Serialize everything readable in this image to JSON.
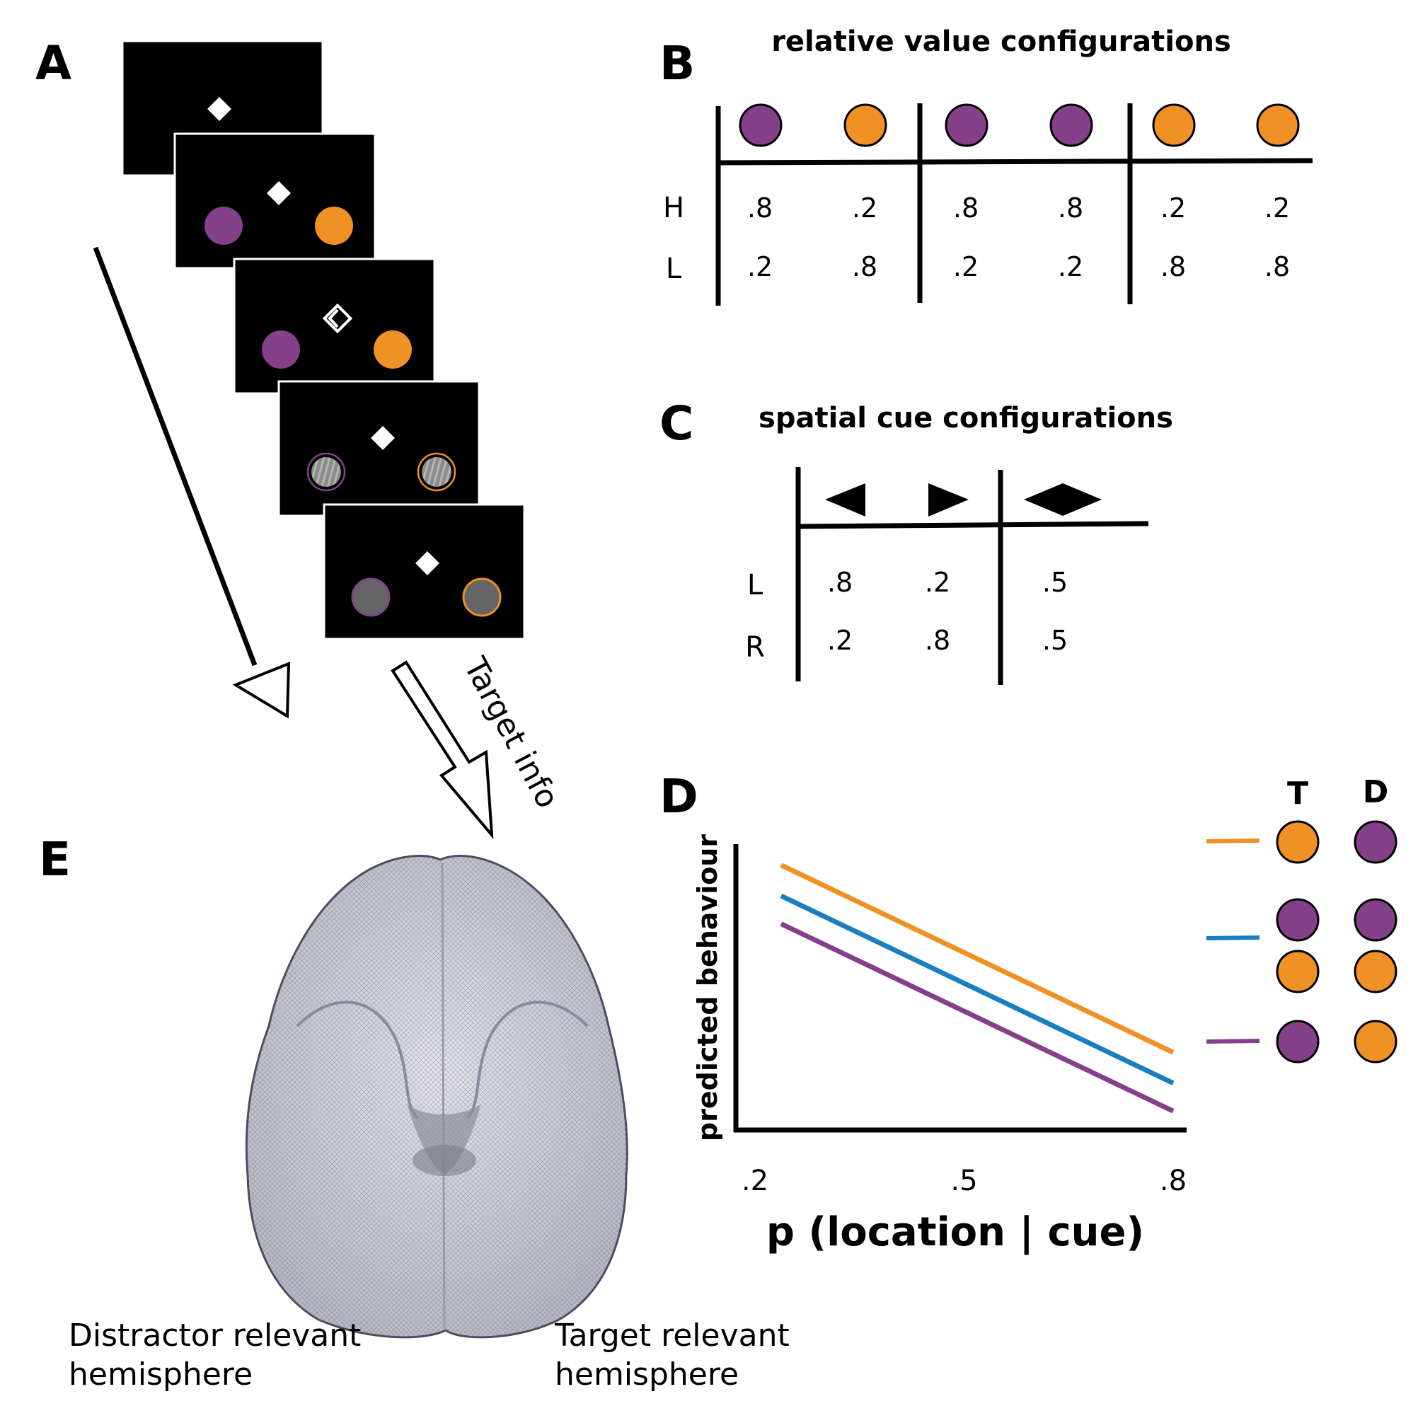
{
  "panel_a": {
    "letter": "A",
    "target_arrow_label": "Target info",
    "colors": {
      "purple": "#844089",
      "orange": "#ef9125",
      "screen": "#000000",
      "grating_gray": "#8c8c8c"
    }
  },
  "panel_b": {
    "letter": "B",
    "title": "relative value configurations",
    "row_labels": [
      "H",
      "L"
    ],
    "columns": [
      {
        "color": "purple",
        "H": ".8",
        "L": ".2"
      },
      {
        "color": "orange",
        "H": ".2",
        "L": ".8"
      },
      {
        "color": "purple",
        "H": ".8",
        "L": ".2"
      },
      {
        "color": "purple",
        "H": ".8",
        "L": ".2"
      },
      {
        "color": "orange",
        "H": ".2",
        "L": ".8"
      },
      {
        "color": "orange",
        "H": ".2",
        "L": ".8"
      }
    ]
  },
  "panel_c": {
    "letter": "C",
    "title": "spatial cue configurations",
    "row_labels": [
      "L",
      "R"
    ],
    "columns": [
      {
        "cue": "left-arrow",
        "L": ".8",
        "R": ".2"
      },
      {
        "cue": "right-arrow",
        "L": ".2",
        "R": ".8"
      },
      {
        "cue": "double-arrow",
        "L": ".5",
        "R": ".5"
      }
    ]
  },
  "panel_d": {
    "letter": "D",
    "legend_headers": [
      "T",
      "D"
    ],
    "legend_rows": [
      {
        "line_color": "#ef9125",
        "pairs": [
          [
            "orange",
            "purple"
          ]
        ]
      },
      {
        "line_color": "#1a7fbf",
        "pairs": [
          [
            "purple",
            "purple"
          ],
          [
            "orange",
            "orange"
          ]
        ]
      },
      {
        "line_color": "#844089",
        "pairs": [
          [
            "purple",
            "orange"
          ]
        ]
      }
    ]
  },
  "chart_data": {
    "type": "line",
    "xlabel": "p (location | cue)",
    "ylabel": "predicted behaviour",
    "x_ticks": [
      ".2",
      ".5",
      ".8"
    ],
    "xlim": [
      0.2,
      0.8
    ],
    "ylim": [
      0,
      1
    ],
    "grid": false,
    "series": [
      {
        "color": "#ef9125",
        "x": [
          0.2,
          0.8
        ],
        "y": [
          0.93,
          0.26
        ]
      },
      {
        "color": "#1a7fbf",
        "x": [
          0.2,
          0.8
        ],
        "y": [
          0.82,
          0.15
        ]
      },
      {
        "color": "#844089",
        "x": [
          0.2,
          0.8
        ],
        "y": [
          0.72,
          0.05
        ]
      }
    ]
  },
  "panel_e": {
    "letter": "E",
    "left_label_line1": "Distractor relevant",
    "left_label_line2": "hemisphere",
    "right_label_line1": "Target relevant",
    "right_label_line2": "hemisphere"
  }
}
